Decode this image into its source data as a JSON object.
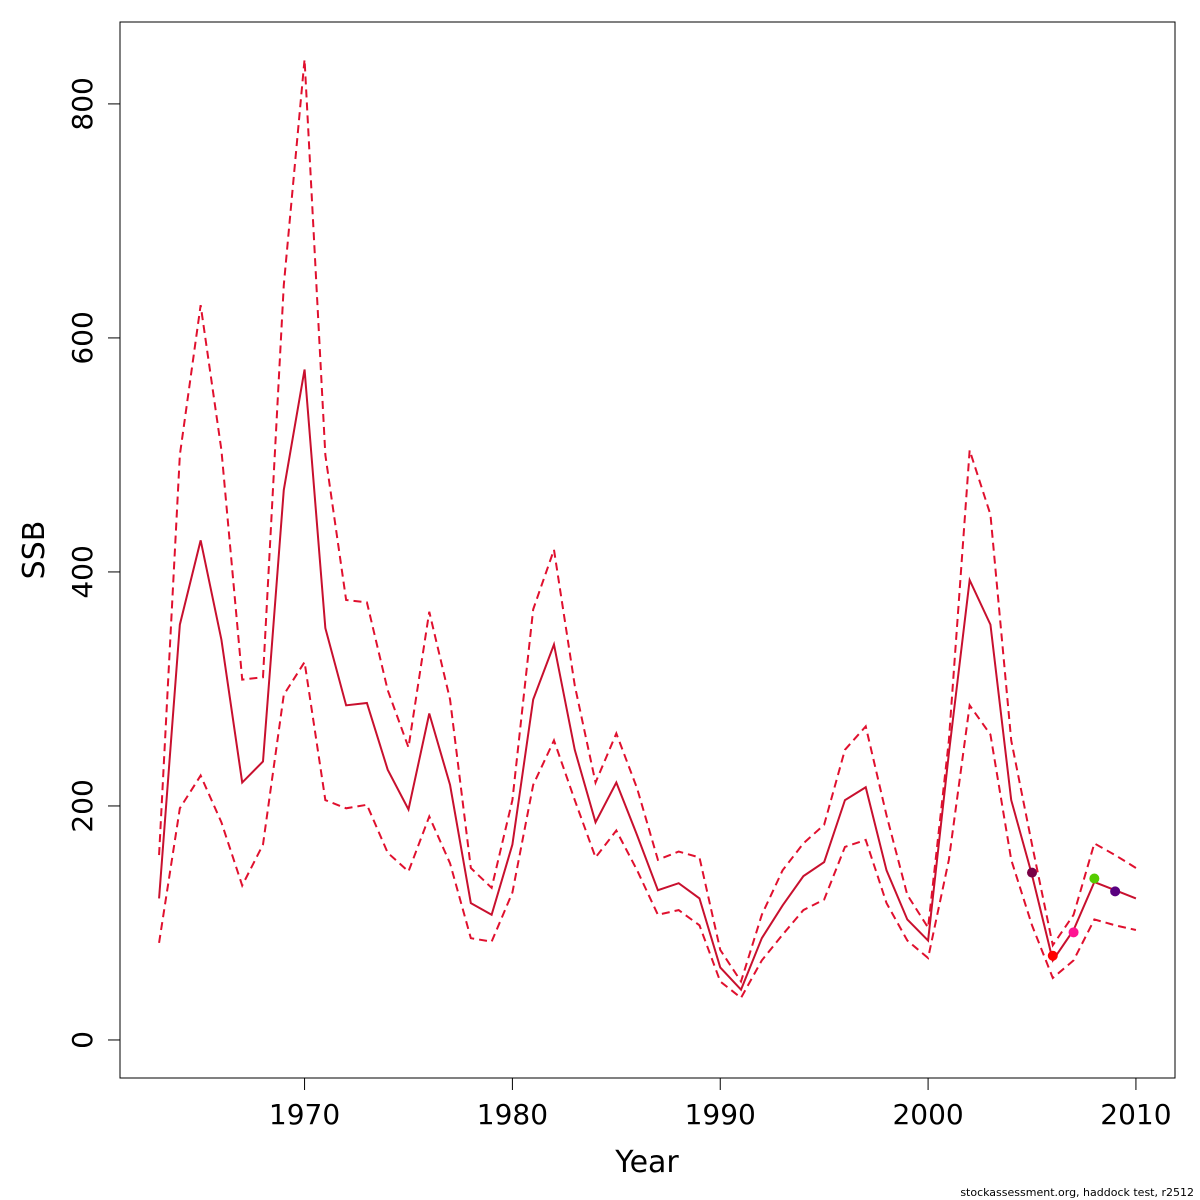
{
  "chart_data": {
    "type": "line",
    "xlabel": "Year",
    "ylabel": "SSB",
    "footer": "stockassessment.org, haddock  test, r2512",
    "x": [
      1963,
      1964,
      1965,
      1966,
      1967,
      1968,
      1969,
      1970,
      1971,
      1972,
      1973,
      1974,
      1975,
      1976,
      1977,
      1978,
      1979,
      1980,
      1981,
      1982,
      1983,
      1984,
      1985,
      1986,
      1987,
      1988,
      1989,
      1990,
      1991,
      1992,
      1993,
      1994,
      1995,
      1996,
      1997,
      1998,
      1999,
      2000,
      2001,
      2002,
      2003,
      2004,
      2005,
      2006,
      2007,
      2008,
      2009,
      2010
    ],
    "series": [
      {
        "color": "#c8102e",
        "linestyle": "solid",
        "values": [
          121,
          355,
          427,
          342,
          220,
          238,
          470,
          573,
          352,
          286,
          288,
          231,
          197,
          279,
          218,
          117,
          107,
          167,
          291,
          338,
          248,
          186,
          220,
          175,
          128,
          134,
          121,
          62,
          43,
          87,
          115,
          140,
          152,
          205,
          216,
          145,
          103,
          85,
          245,
          393,
          355,
          205,
          141,
          68,
          94,
          135,
          128,
          121
        ]
      },
      {
        "color": "#e0102e",
        "linestyle": "dashed",
        "values": [
          158,
          500,
          628,
          504,
          308,
          310,
          645,
          838,
          500,
          376,
          374,
          299,
          250,
          366,
          291,
          147,
          130,
          205,
          368,
          419,
          303,
          220,
          262,
          215,
          154,
          161,
          156,
          77,
          50,
          107,
          145,
          168,
          184,
          248,
          268,
          192,
          124,
          96,
          256,
          504,
          449,
          256,
          167,
          81,
          107,
          168,
          158,
          147
        ]
      },
      {
        "color": "#e0102e",
        "linestyle": "dashed",
        "values": [
          83,
          198,
          226,
          186,
          132,
          167,
          295,
          323,
          205,
          198,
          201,
          160,
          144,
          191,
          151,
          87,
          84,
          126,
          218,
          256,
          205,
          156,
          179,
          145,
          107,
          111,
          98,
          50,
          36,
          68,
          90,
          111,
          120,
          165,
          171,
          117,
          85,
          70,
          154,
          286,
          261,
          154,
          98,
          53,
          68,
          103,
          98,
          94
        ]
      }
    ],
    "points": {
      "x": [
        2005,
        2006,
        2007,
        2008,
        2009
      ],
      "values": [
        143,
        72,
        92,
        138,
        127
      ],
      "colors": [
        "#7a0045",
        "#ff0000",
        "#ff1493",
        "#55cc00",
        "#5a0080"
      ]
    },
    "xlim": [
      1961.12,
      2011.88
    ],
    "ylim": [
      -32.5,
      870
    ],
    "xticks": [
      1970,
      1980,
      1990,
      2000,
      2010
    ],
    "yticks": [
      0,
      200,
      400,
      600,
      800
    ]
  }
}
